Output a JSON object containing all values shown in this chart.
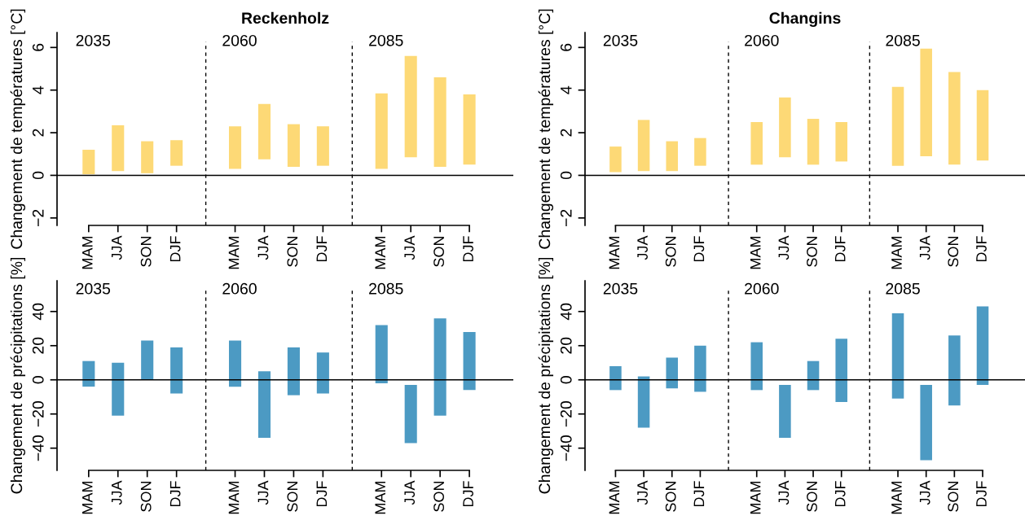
{
  "chart_data": [
    {
      "type": "bar",
      "title": "Reckenholz",
      "ylabel": "Changement de températures [°C]",
      "categories": [
        "MAM",
        "JJA",
        "SON",
        "DJF",
        "MAM",
        "JJA",
        "SON",
        "DJF",
        "MAM",
        "JJA",
        "SON",
        "DJF"
      ],
      "base": [
        0.05,
        0.2,
        0.1,
        0.45,
        0.3,
        0.75,
        0.4,
        0.45,
        0.3,
        0.85,
        0.4,
        0.5
      ],
      "values": [
        1.15,
        2.15,
        1.5,
        1.2,
        2.0,
        2.6,
        2.0,
        1.85,
        3.55,
        4.75,
        4.2,
        3.3
      ],
      "color": "#fdd976",
      "ylim": [
        -2.35,
        6.7
      ],
      "yticks": [
        {
          "value": -2,
          "label": "−2"
        },
        0,
        2,
        4,
        6
      ],
      "annotations": [
        "2035",
        "2060",
        "2085"
      ],
      "ref_lines": [
        {
          "axis": "y",
          "value": 0,
          "color": "#000000",
          "line_style": "solid"
        }
      ]
    },
    {
      "type": "bar",
      "title": "Changins",
      "ylabel": "Changement de températures [°C]",
      "categories": [
        "MAM",
        "JJA",
        "SON",
        "DJF",
        "MAM",
        "JJA",
        "SON",
        "DJF",
        "MAM",
        "JJA",
        "SON",
        "DJF"
      ],
      "base": [
        0.15,
        0.2,
        0.2,
        0.45,
        0.5,
        0.85,
        0.5,
        0.65,
        0.45,
        0.9,
        0.5,
        0.7
      ],
      "values": [
        1.2,
        2.4,
        1.4,
        1.3,
        2.0,
        2.8,
        2.15,
        1.85,
        3.7,
        5.05,
        4.35,
        3.3
      ],
      "color": "#fdd976",
      "ylim": [
        -2.35,
        6.7
      ],
      "yticks": [
        {
          "value": -2,
          "label": "−2"
        },
        0,
        2,
        4,
        6
      ],
      "annotations": [
        "2035",
        "2060",
        "2085"
      ],
      "ref_lines": [
        {
          "axis": "y",
          "value": 0,
          "color": "#000000",
          "line_style": "solid"
        }
      ]
    },
    {
      "type": "bar",
      "ylabel": "Changement de précipitations [%]",
      "categories": [
        "MAM",
        "JJA",
        "SON",
        "DJF",
        "MAM",
        "JJA",
        "SON",
        "DJF",
        "MAM",
        "JJA",
        "SON",
        "DJF"
      ],
      "base": [
        -4,
        -21,
        0,
        -8,
        -4,
        -34,
        -9,
        -8,
        -2,
        -37,
        -21,
        -6
      ],
      "values": [
        15,
        31,
        23,
        27,
        27,
        39,
        28,
        24,
        34,
        34,
        57,
        34
      ],
      "color": "#4c9ac3",
      "ylim": [
        -53,
        58
      ],
      "yticks": [
        {
          "value": -40,
          "label": "−40"
        },
        {
          "value": -20,
          "label": "−20"
        },
        0,
        20,
        40
      ],
      "annotations": [
        "2035",
        "2060",
        "2085"
      ],
      "ref_lines": [
        {
          "axis": "y",
          "value": 0,
          "color": "#000000",
          "line_style": "solid"
        }
      ]
    },
    {
      "type": "bar",
      "ylabel": "Changement de précipitations [%]",
      "categories": [
        "MAM",
        "JJA",
        "SON",
        "DJF",
        "MAM",
        "JJA",
        "SON",
        "DJF",
        "MAM",
        "JJA",
        "SON",
        "DJF"
      ],
      "base": [
        -6,
        -28,
        -5,
        -7,
        -6,
        -34,
        -6,
        -13,
        -11,
        -47,
        -15,
        -3
      ],
      "values": [
        14,
        30,
        18,
        27,
        28,
        31,
        17,
        37,
        50,
        44,
        41,
        46
      ],
      "color": "#4c9ac3",
      "ylim": [
        -53,
        58
      ],
      "yticks": [
        {
          "value": -40,
          "label": "−40"
        },
        {
          "value": -20,
          "label": "−20"
        },
        0,
        20,
        40
      ],
      "annotations": [
        "2035",
        "2060",
        "2085"
      ],
      "ref_lines": [
        {
          "axis": "y",
          "value": 0,
          "color": "#000000",
          "line_style": "solid"
        }
      ]
    }
  ]
}
